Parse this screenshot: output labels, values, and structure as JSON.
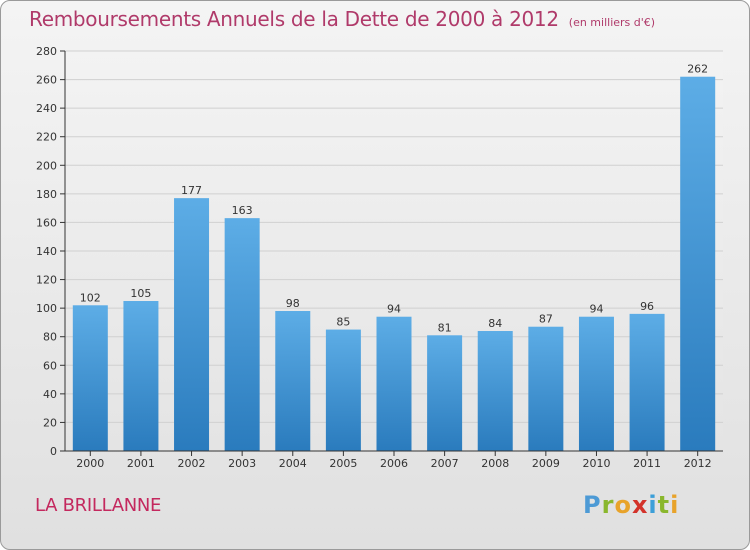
{
  "header": {
    "title": "Remboursements Annuels de la Dette de 2000 à 2012",
    "subtitle": "(en milliers d'€)"
  },
  "commune": "LA BRILLANNE",
  "logo": {
    "text": "Proxiti",
    "letters": [
      "P",
      "r",
      "o",
      "x",
      "i",
      "t",
      "i"
    ]
  },
  "colors": {
    "bar_top": "#5dade6",
    "bar_bottom": "#2a7bbd",
    "title": "#b03a6a",
    "grid": "#d0d0d0"
  },
  "chart_data": {
    "type": "bar",
    "title": "Remboursements Annuels de la Dette de 2000 à 2012",
    "categories": [
      "2000",
      "2001",
      "2002",
      "2003",
      "2004",
      "2005",
      "2006",
      "2007",
      "2008",
      "2009",
      "2010",
      "2011",
      "2012"
    ],
    "values": [
      102,
      105,
      177,
      163,
      98,
      85,
      94,
      81,
      84,
      87,
      94,
      96,
      262
    ],
    "ylim": [
      0,
      280
    ],
    "yticks": [
      0,
      20,
      40,
      60,
      80,
      100,
      120,
      140,
      160,
      180,
      200,
      220,
      240,
      260,
      280
    ],
    "grid": true,
    "data_labels": true
  }
}
